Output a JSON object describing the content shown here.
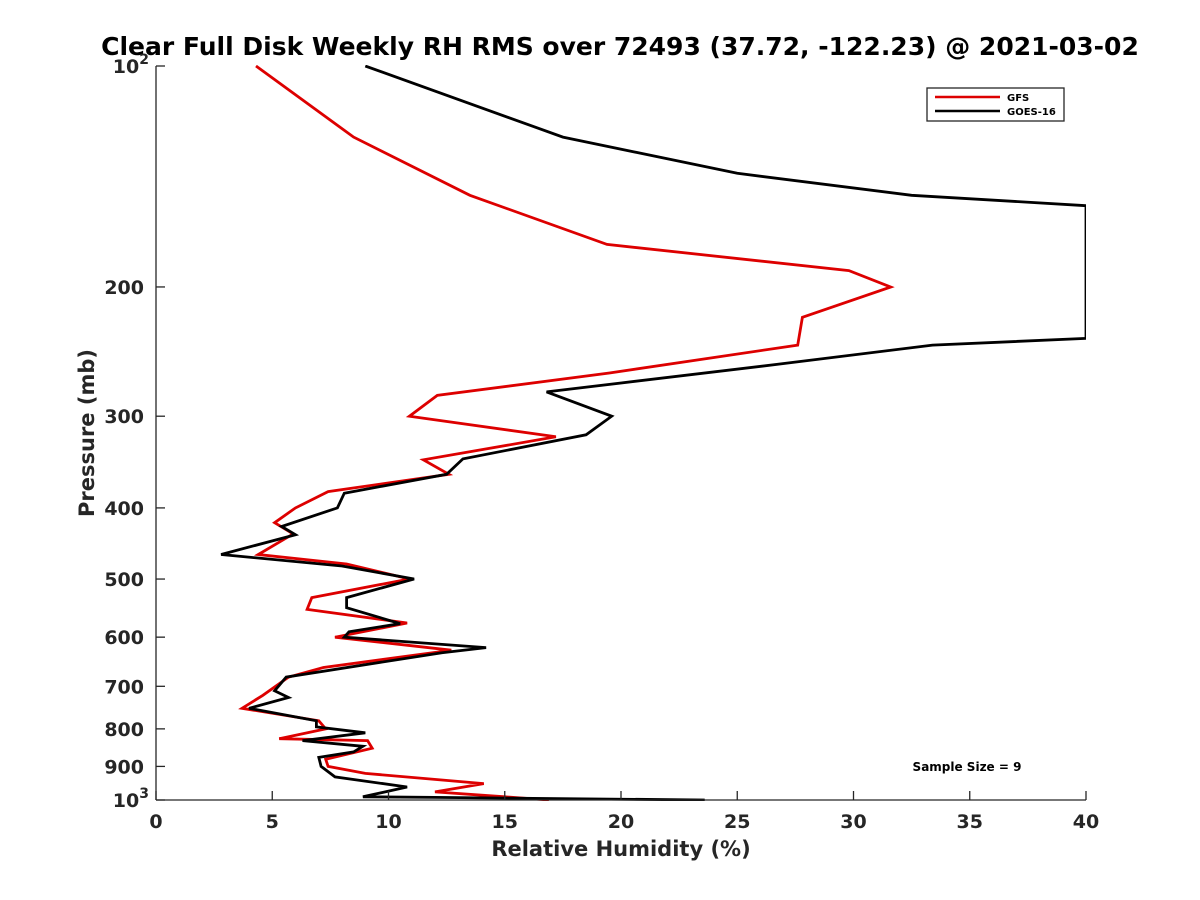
{
  "chart_data": {
    "type": "line",
    "title": "Clear Full Disk Weekly RH RMS over 72493 (37.72, -122.23) @ 2021-03-02",
    "xlabel": "Relative Humidity (%)",
    "ylabel": "Pressure (mb)",
    "xlim": [
      0,
      40
    ],
    "ylim": [
      100,
      1000
    ],
    "y_scale": "log",
    "y_reversed": true,
    "x_ticks": [
      "0",
      "5",
      "10",
      "15",
      "20",
      "25",
      "30",
      "35",
      "40"
    ],
    "y_ticks": [
      {
        "value": 100,
        "base": "10",
        "exp": "2"
      },
      {
        "value": 200,
        "label": "200"
      },
      {
        "value": 300,
        "label": "300"
      },
      {
        "value": 400,
        "label": "400"
      },
      {
        "value": 500,
        "label": "500"
      },
      {
        "value": 600,
        "label": "600"
      },
      {
        "value": 700,
        "label": "700"
      },
      {
        "value": 800,
        "label": "800"
      },
      {
        "value": 900,
        "label": "900"
      },
      {
        "value": 1000,
        "base": "10",
        "exp": "3"
      }
    ],
    "grid": false,
    "legend": {
      "placement": "top-right"
    },
    "series": [
      {
        "name": "GFS",
        "color": "#dd0000",
        "points": [
          [
            4.3,
            100
          ],
          [
            8.5,
            125
          ],
          [
            13.5,
            150
          ],
          [
            19.4,
            175
          ],
          [
            29.8,
            190
          ],
          [
            31.6,
            200
          ],
          [
            27.8,
            220
          ],
          [
            27.6,
            240
          ],
          [
            19.5,
            262
          ],
          [
            12.1,
            281
          ],
          [
            10.9,
            300
          ],
          [
            17.2,
            320
          ],
          [
            11.5,
            344
          ],
          [
            12.6,
            360
          ],
          [
            7.4,
            380
          ],
          [
            6.0,
            400
          ],
          [
            5.1,
            419
          ],
          [
            5.9,
            434
          ],
          [
            4.4,
            463
          ],
          [
            8.2,
            477
          ],
          [
            10.9,
            500
          ],
          [
            6.7,
            530
          ],
          [
            6.5,
            550
          ],
          [
            10.8,
            574
          ],
          [
            7.7,
            600
          ],
          [
            12.7,
            625
          ],
          [
            7.2,
            660
          ],
          [
            5.7,
            680
          ],
          [
            4.6,
            720
          ],
          [
            3.7,
            750
          ],
          [
            7.0,
            780
          ],
          [
            7.3,
            800
          ],
          [
            5.3,
            825
          ],
          [
            9.1,
            830
          ],
          [
            9.3,
            850
          ],
          [
            7.3,
            880
          ],
          [
            7.4,
            900
          ],
          [
            9.0,
            920
          ],
          [
            14.1,
            950
          ],
          [
            12.0,
            975
          ],
          [
            15.0,
            990
          ],
          [
            16.9,
            1000
          ]
        ]
      },
      {
        "name": "GOES-16",
        "color": "#000000",
        "points": [
          [
            9.0,
            100
          ],
          [
            17.5,
            125
          ],
          [
            25.0,
            140
          ],
          [
            32.5,
            150
          ],
          [
            40.0,
            155
          ],
          [
            40.0,
            235
          ],
          [
            33.4,
            240
          ],
          [
            26.7,
            255
          ],
          [
            16.8,
            278
          ],
          [
            19.6,
            300
          ],
          [
            18.5,
            318
          ],
          [
            13.2,
            343
          ],
          [
            12.5,
            360
          ],
          [
            8.1,
            382
          ],
          [
            7.8,
            400
          ],
          [
            5.4,
            424
          ],
          [
            6.0,
            435
          ],
          [
            2.8,
            463
          ],
          [
            8.0,
            480
          ],
          [
            11.1,
            500
          ],
          [
            8.2,
            530
          ],
          [
            8.2,
            547
          ],
          [
            10.5,
            575
          ],
          [
            8.3,
            590
          ],
          [
            8.1,
            600
          ],
          [
            14.2,
            620
          ],
          [
            12.3,
            630
          ],
          [
            5.6,
            680
          ],
          [
            5.1,
            710
          ],
          [
            5.7,
            725
          ],
          [
            4.0,
            750
          ],
          [
            6.9,
            780
          ],
          [
            6.9,
            795
          ],
          [
            9.0,
            810
          ],
          [
            6.3,
            830
          ],
          [
            8.9,
            845
          ],
          [
            8.5,
            860
          ],
          [
            7.0,
            875
          ],
          [
            7.1,
            900
          ],
          [
            7.7,
            930
          ],
          [
            10.8,
            960
          ],
          [
            8.9,
            990
          ],
          [
            12.0,
            992
          ],
          [
            23.6,
            1000
          ]
        ]
      }
    ],
    "annotations": [
      {
        "text": "Sample Size = 9"
      }
    ]
  }
}
